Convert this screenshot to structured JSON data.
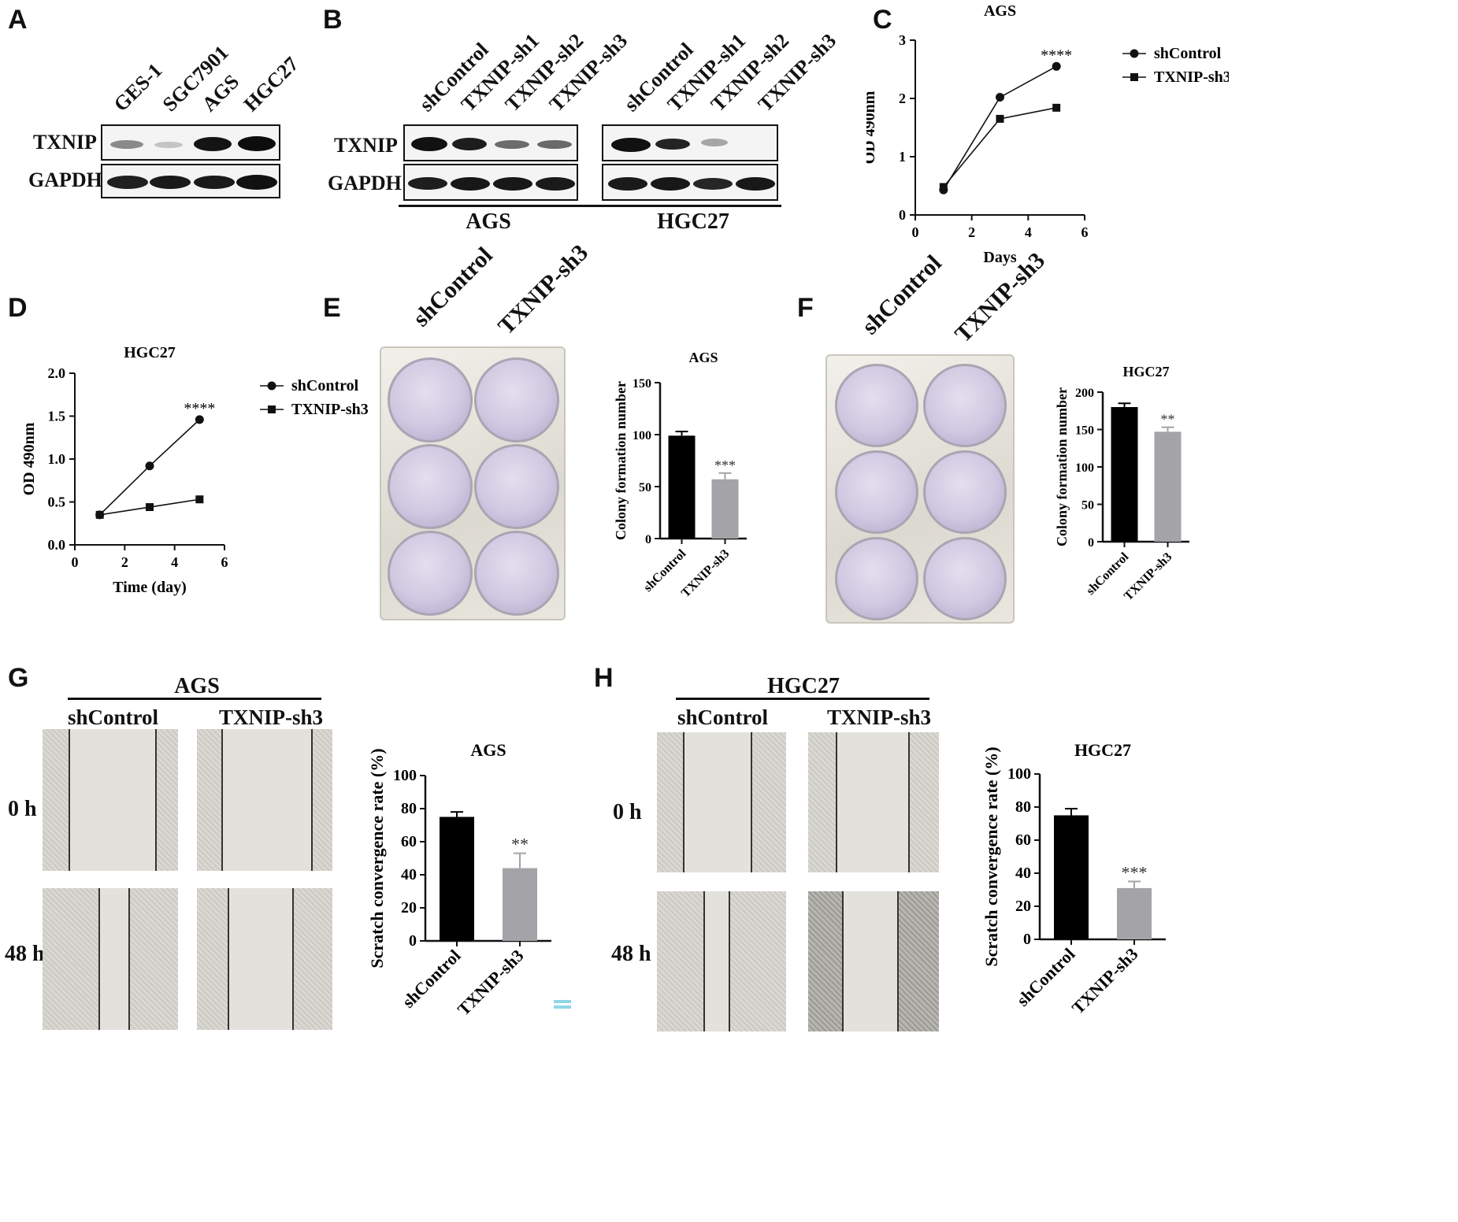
{
  "panels": {
    "A": {
      "letter": "A",
      "lanes": [
        "GES-1",
        "SGC7901",
        "AGS",
        "HGC27"
      ],
      "rows": [
        "TXNIP",
        "GAPDH"
      ]
    },
    "B": {
      "letter": "B",
      "lanes": [
        "shControl",
        "TXNIP-sh1",
        "TXNIP-sh2",
        "TXNIP-sh3",
        "shControl",
        "TXNIP-sh1",
        "TXNIP-sh2",
        "TXNIP-sh3"
      ],
      "rows": [
        "TXNIP",
        "GAPDH"
      ],
      "groups": [
        "AGS",
        "HGC27"
      ]
    },
    "C": {
      "letter": "C"
    },
    "D": {
      "letter": "D"
    },
    "E": {
      "letter": "E",
      "columns": [
        "shControl",
        "TXNIP-sh3"
      ]
    },
    "F": {
      "letter": "F",
      "columns": [
        "shControl",
        "TXNIP-sh3"
      ]
    },
    "G": {
      "letter": "G",
      "heading": "AGS",
      "columns": [
        "shControl",
        "TXNIP-sh3"
      ],
      "rows": [
        "0 h",
        "48 h"
      ]
    },
    "H": {
      "letter": "H",
      "heading": "HGC27",
      "columns": [
        "shControl",
        "TXNIP-sh3"
      ],
      "rows": [
        "0 h",
        "48 h"
      ]
    }
  },
  "chart_data": [
    {
      "id": "C",
      "type": "line",
      "title": "AGS",
      "xlabel": "Days",
      "ylabel": "OD 490nm",
      "xlim": [
        0,
        6
      ],
      "ylim": [
        0,
        3
      ],
      "xticks": [
        "0",
        "2",
        "4",
        "6"
      ],
      "yticks": [
        "0",
        "1",
        "2",
        "3"
      ],
      "series": [
        {
          "name": "shControl",
          "marker": "circle",
          "x": [
            1,
            3,
            5
          ],
          "y": [
            0.43,
            2.02,
            2.55
          ]
        },
        {
          "name": "TXNIP-sh3",
          "marker": "square",
          "x": [
            1,
            3,
            5
          ],
          "y": [
            0.48,
            1.65,
            1.84
          ]
        }
      ],
      "annotation": "****",
      "legend": "right"
    },
    {
      "id": "D",
      "type": "line",
      "title": "HGC27",
      "xlabel": "Time (day)",
      "ylabel": "OD 490nm",
      "xlim": [
        0,
        6
      ],
      "ylim": [
        0,
        2.0
      ],
      "xticks": [
        "0",
        "2",
        "4",
        "6"
      ],
      "yticks": [
        "0.0",
        "0.5",
        "1.0",
        "1.5",
        "2.0"
      ],
      "series": [
        {
          "name": "shControl",
          "marker": "circle",
          "x": [
            1,
            3,
            5
          ],
          "y": [
            0.35,
            0.92,
            1.46
          ]
        },
        {
          "name": "TXNIP-sh3",
          "marker": "square",
          "x": [
            1,
            3,
            5
          ],
          "y": [
            0.35,
            0.44,
            0.53
          ]
        }
      ],
      "annotation": "****",
      "legend": "right"
    },
    {
      "id": "E",
      "type": "bar",
      "title": "AGS",
      "ylabel": "Colony formation number",
      "ylim": [
        0,
        150
      ],
      "yticks": [
        "0",
        "50",
        "100",
        "150"
      ],
      "categories": [
        "shControl",
        "TXNIP-sh3"
      ],
      "values": [
        99,
        57
      ],
      "errors": [
        4,
        6
      ],
      "colors": [
        "#000000",
        "#a3a3a8"
      ],
      "annotation": "***"
    },
    {
      "id": "F",
      "type": "bar",
      "title": "HGC27",
      "ylabel": "Colony formation number",
      "ylim": [
        0,
        200
      ],
      "yticks": [
        "0",
        "50",
        "100",
        "150",
        "200"
      ],
      "categories": [
        "shControl",
        "TXNIP-sh3"
      ],
      "values": [
        180,
        147
      ],
      "errors": [
        5,
        6
      ],
      "colors": [
        "#000000",
        "#a3a3a8"
      ],
      "annotation": "**"
    },
    {
      "id": "G",
      "type": "bar",
      "title": "AGS",
      "ylabel": "Scratch convergence rate (%)",
      "ylim": [
        0,
        100
      ],
      "yticks": [
        "0",
        "20",
        "40",
        "60",
        "80",
        "100"
      ],
      "categories": [
        "shControl",
        "TXNIP-sh3"
      ],
      "values": [
        75,
        44
      ],
      "errors": [
        3,
        9
      ],
      "colors": [
        "#000000",
        "#a3a3a8"
      ],
      "annotation": "**"
    },
    {
      "id": "H",
      "type": "bar",
      "title": "HGC27",
      "ylabel": "Scratch convergence rate (%)",
      "ylim": [
        0,
        100
      ],
      "yticks": [
        "0",
        "20",
        "40",
        "60",
        "80",
        "100"
      ],
      "categories": [
        "shControl",
        "TXNIP-sh3"
      ],
      "values": [
        75,
        31
      ],
      "errors": [
        4,
        4
      ],
      "colors": [
        "#000000",
        "#a3a3a8"
      ],
      "annotation": "***"
    }
  ]
}
